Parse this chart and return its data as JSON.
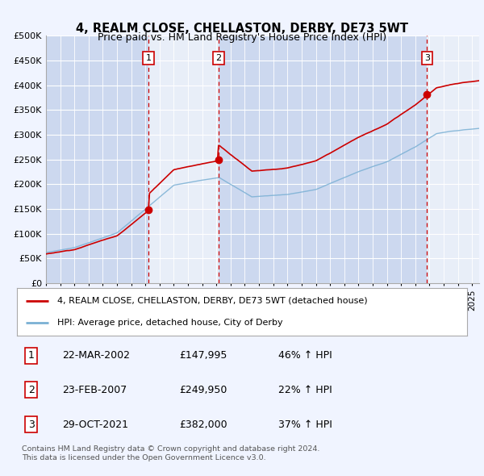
{
  "title": "4, REALM CLOSE, CHELLASTON, DERBY, DE73 5WT",
  "subtitle": "Price paid vs. HM Land Registry's House Price Index (HPI)",
  "legend_label_red": "4, REALM CLOSE, CHELLASTON, DERBY, DE73 5WT (detached house)",
  "legend_label_blue": "HPI: Average price, detached house, City of Derby",
  "footnote": "Contains HM Land Registry data © Crown copyright and database right 2024.\nThis data is licensed under the Open Government Licence v3.0.",
  "transactions": [
    {
      "num": 1,
      "date": "22-MAR-2002",
      "price": 147995,
      "pct": "46% ↑ HPI",
      "x": 2002.22
    },
    {
      "num": 2,
      "date": "23-FEB-2007",
      "price": 249950,
      "pct": "22% ↑ HPI",
      "x": 2007.14
    },
    {
      "num": 3,
      "date": "29-OCT-2021",
      "price": 382000,
      "pct": "37% ↑ HPI",
      "x": 2021.83
    }
  ],
  "background_color": "#f0f4ff",
  "plot_bg": "#dde6f5",
  "red_color": "#cc0000",
  "blue_color": "#7ab0d4",
  "ylim": [
    0,
    500000
  ],
  "yticks": [
    0,
    50000,
    100000,
    150000,
    200000,
    250000,
    300000,
    350000,
    400000,
    450000,
    500000
  ],
  "xmin": 1995.0,
  "xmax": 2025.5,
  "shade_light": "#e8eef8",
  "shade_dark": "#ccd8ef"
}
